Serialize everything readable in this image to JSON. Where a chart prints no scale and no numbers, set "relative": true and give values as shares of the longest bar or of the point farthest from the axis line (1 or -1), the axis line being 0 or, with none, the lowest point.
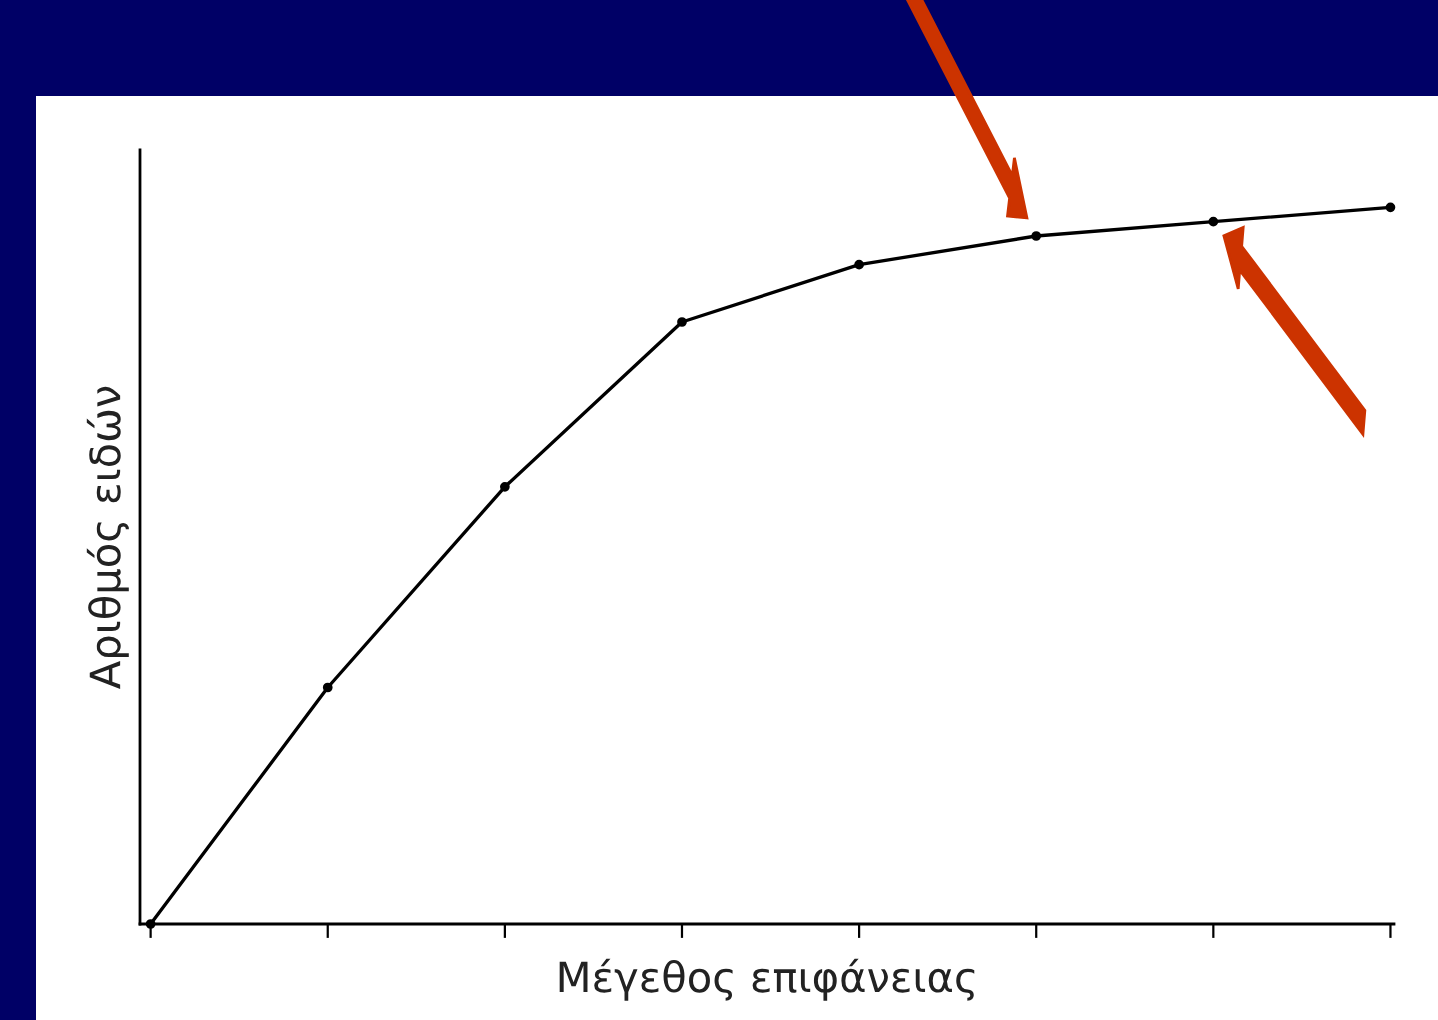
{
  "chart_data": {
    "type": "line",
    "relative": true,
    "xlabel": "Μέγεθος επιφάνειας",
    "ylabel": "Αριθμός ειδών",
    "categories": [
      null,
      null,
      null,
      null,
      null,
      null,
      null,
      null
    ],
    "series": [
      {
        "color": "#000000",
        "values": [
          0,
          0.33,
          0.61,
          0.84,
          0.92,
          0.96,
          0.98,
          1.0
        ]
      }
    ],
    "marker": "circle",
    "line_style": "solid",
    "grid": false,
    "legend": false
  }
}
